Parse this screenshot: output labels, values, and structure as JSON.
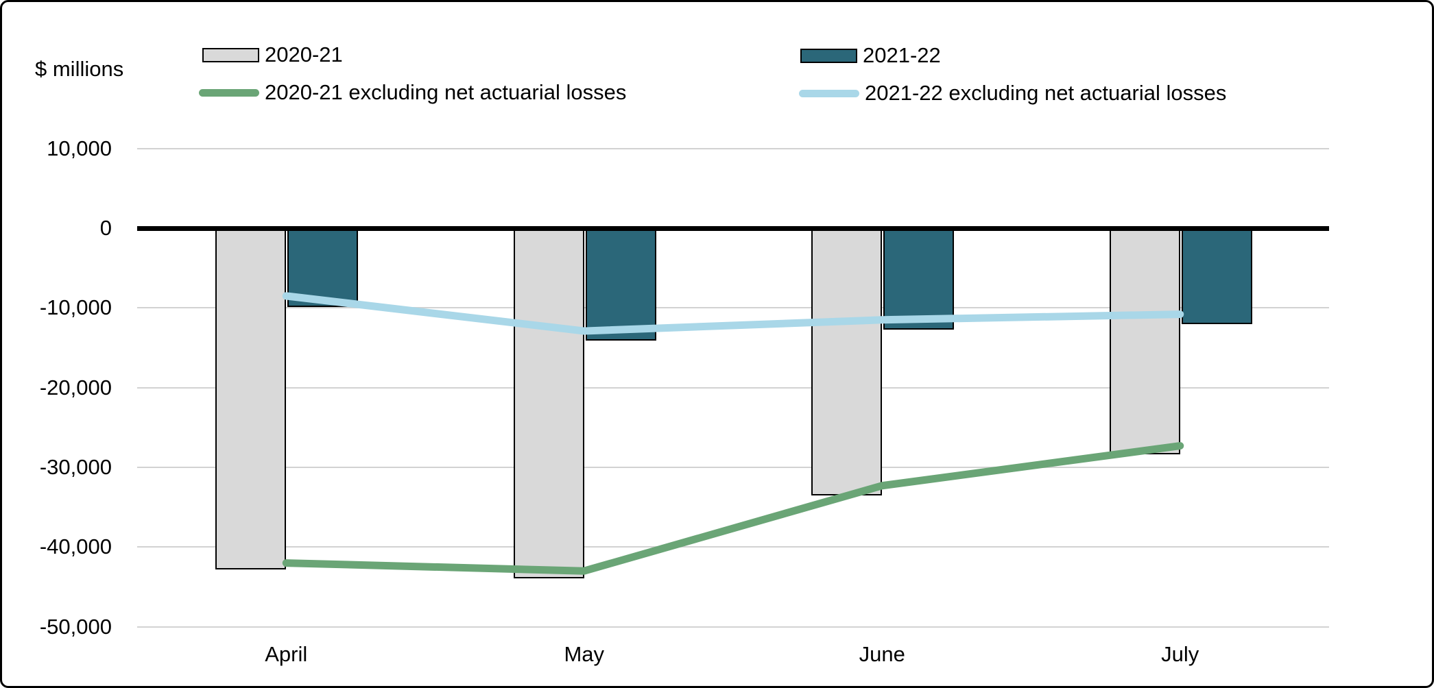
{
  "ylabel": "$ millions",
  "legend": [
    {
      "label": "2020-21",
      "type": "bar",
      "color": "#d9d9d9"
    },
    {
      "label": "2021-22",
      "type": "bar",
      "color": "#2b6779"
    },
    {
      "label": "2020-21 excluding net actuarial losses",
      "type": "line",
      "color": "#6aa576"
    },
    {
      "label": "2021-22 excluding net actuarial losses",
      "type": "line",
      "color": "#a9d7e8"
    }
  ],
  "chart_data": {
    "type": "combo-bar-line",
    "title": "",
    "ylabel": "$ millions",
    "categories": [
      "April",
      "May",
      "June",
      "July"
    ],
    "series": [
      {
        "name": "2020-21",
        "type": "bar",
        "color": "#d9d9d9",
        "values": [
          -42800,
          -43900,
          -33500,
          -28400
        ]
      },
      {
        "name": "2021-22",
        "type": "bar",
        "color": "#2b6779",
        "values": [
          -9900,
          -14100,
          -12700,
          -12000
        ]
      },
      {
        "name": "2020-21 excluding net actuarial losses",
        "type": "line",
        "color": "#6aa576",
        "values": [
          -42000,
          -43000,
          -32300,
          -27300
        ]
      },
      {
        "name": "2021-22 excluding net actuarial losses",
        "type": "line",
        "color": "#a9d7e8",
        "values": [
          -8500,
          -12900,
          -11500,
          -10800
        ]
      }
    ],
    "yticks": [
      10000,
      0,
      -10000,
      -20000,
      -30000,
      -40000,
      -50000
    ],
    "ylim": [
      -50000,
      10000
    ],
    "grid": true,
    "zero_line": true,
    "legend_position": "top"
  }
}
